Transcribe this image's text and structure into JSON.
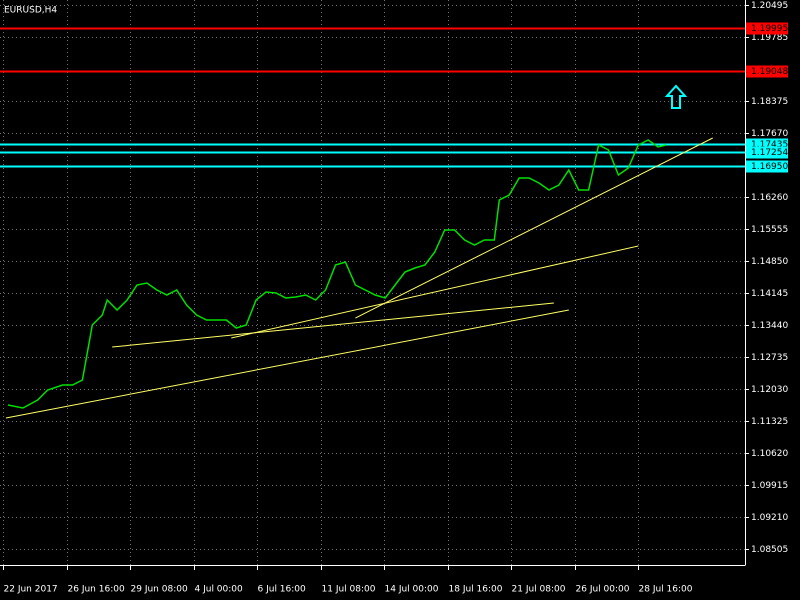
{
  "chart_data": {
    "type": "line",
    "title": "EURUSD,H4",
    "color": "#00e000",
    "grid": true,
    "x": [
      1.25,
      5,
      8.75,
      11.25,
      15,
      17.5,
      20,
      22.5,
      25,
      26.25,
      28.75,
      31.25,
      33.75,
      36.25,
      38.75,
      41.25,
      43.75,
      46.25,
      48.75,
      51.25,
      53.75,
      56.25,
      58.75,
      61.25,
      63.75,
      66.25,
      68.75,
      71.25,
      73.75,
      76.25,
      78.75,
      81.25,
      83.75,
      86.25,
      88.75,
      91.25,
      93.75,
      96.25,
      98.75,
      101.25,
      103.75,
      106.25,
      108.75,
      111.25,
      113.75,
      116.25,
      118.75,
      121.25,
      123.75,
      125,
      127.5,
      130,
      132.5,
      135,
      137.5,
      140,
      142.5,
      145,
      147.5,
      150,
      152.5,
      155,
      157.5,
      160,
      162.5,
      165,
      167
    ],
    "values": [
      1.11683,
      1.11616,
      1.11793,
      1.12013,
      1.12123,
      1.12123,
      1.12233,
      1.13445,
      1.13665,
      1.13996,
      1.13776,
      1.13996,
      1.14326,
      1.1437,
      1.14216,
      1.14106,
      1.14216,
      1.13886,
      1.13665,
      1.13555,
      1.13555,
      1.13555,
      1.13379,
      1.13445,
      1.13996,
      1.14172,
      1.1415,
      1.1404,
      1.14062,
      1.14106,
      1.13996,
      1.14216,
      1.14767,
      1.14833,
      1.14326,
      1.14216,
      1.14106,
      1.1404,
      1.14326,
      1.14613,
      1.14701,
      1.14767,
      1.15053,
      1.15538,
      1.15538,
      1.15318,
      1.15208,
      1.15318,
      1.15318,
      1.16199,
      1.16309,
      1.16684,
      1.16684,
      1.16573,
      1.16419,
      1.16529,
      1.1686,
      1.16419,
      1.16419,
      1.17411,
      1.17301,
      1.1675,
      1.16904,
      1.17411,
      1.17521,
      1.17367,
      1.17411
    ],
    "xlim": [
      0,
      186
    ],
    "xticks": [
      {
        "value": 0,
        "label": "22 Jun 2017"
      },
      {
        "value": 16,
        "label": "26 Jun 16:00"
      },
      {
        "value": 32,
        "label": "29 Jun 08:00"
      },
      {
        "value": 48,
        "label": "4 Jul 00:00"
      },
      {
        "value": 64,
        "label": "6 Jul 16:00"
      },
      {
        "value": 80,
        "label": "11 Jul 08:00"
      },
      {
        "value": 96,
        "label": "14 Jul 00:00"
      },
      {
        "value": 112,
        "label": "18 Jul 16:00"
      },
      {
        "value": 128,
        "label": "21 Jul 08:00"
      },
      {
        "value": 144,
        "label": "26 Jul 00:00"
      },
      {
        "value": 160,
        "label": "28 Jul 16:00"
      }
    ],
    "ylim": [
      1.08158,
      1.20605
    ],
    "yticks": [
      1.20495,
      1.19785,
      1.18375,
      {
        "value": 1.1767,
        "label": "1.17670"
      },
      {
        "value": 1.1626,
        "label": "1.16260"
      },
      1.15555,
      {
        "value": 1.1485,
        "label": "1.14850"
      },
      1.14145,
      {
        "value": 1.1344,
        "label": "1.13440"
      },
      1.12735,
      {
        "value": 1.1203,
        "label": "1.12030"
      },
      1.11325,
      {
        "value": 1.1062,
        "label": "1.10620"
      },
      1.09915,
      {
        "value": 1.0921,
        "label": "1.09210"
      },
      1.08505
    ],
    "levels": [
      {
        "value": 1.19995,
        "label": "1.19995",
        "color": "#ff0000"
      },
      {
        "value": 1.19048,
        "label": "1.19048",
        "color": "#ff0000"
      },
      {
        "value": 1.17435,
        "label": "1.17435",
        "color": "#00ffff"
      },
      {
        "value": 1.17254,
        "label": "1.17254",
        "color": "#00ffff"
      },
      {
        "value": 1.1695,
        "label": "1.16950",
        "color": "#00ffff"
      }
    ],
    "trendline_color": "#ffff66",
    "trendlines": [
      {
        "x": [
          0.75,
          142.5
        ],
        "y": [
          1.11396,
          1.13776
        ]
      },
      {
        "x": [
          27.5,
          138.75
        ],
        "y": [
          1.1296,
          1.1393
        ]
      },
      {
        "x": [
          57.5,
          160
        ],
        "y": [
          1.13159,
          1.15186
        ]
      },
      {
        "x": [
          88.75,
          178.75
        ],
        "y": [
          1.13599,
          1.17565
        ]
      }
    ],
    "arrow": {
      "x": 169.5,
      "y": 1.18446,
      "color": "#00ffff"
    }
  }
}
